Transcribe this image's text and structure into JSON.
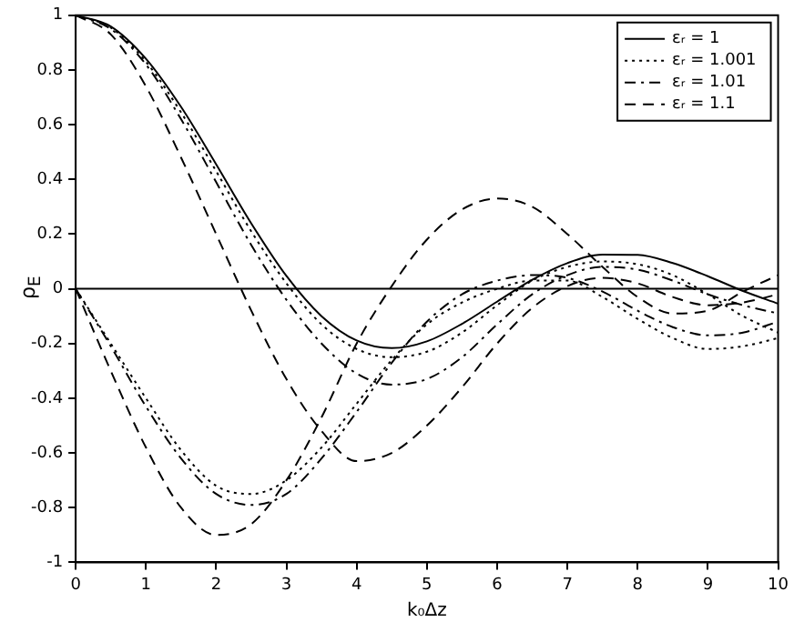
{
  "chart_data": {
    "type": "line",
    "xlabel": "k₀Δz",
    "ylabel": "ρ$_{E}$",
    "x": [
      0,
      0.5,
      1,
      1.5,
      2,
      2.5,
      3,
      3.5,
      4,
      4.5,
      5,
      5.5,
      6,
      6.5,
      7,
      7.5,
      8,
      8.5,
      9,
      9.5,
      10
    ],
    "xlim": [
      0,
      10
    ],
    "xticks": [
      0,
      1,
      2,
      3,
      4,
      5,
      6,
      7,
      8,
      9,
      10
    ],
    "ylim": [
      -1,
      1
    ],
    "yticks": [
      -1,
      -0.8,
      -0.6,
      -0.4,
      -0.2,
      0,
      0.2,
      0.4,
      0.6,
      0.8,
      1
    ],
    "grid": false,
    "legend": "top right",
    "marker": "none",
    "series": [
      {
        "name": "εᵣ = 1",
        "color": "#000000",
        "line_style": "solid",
        "values": [
          1,
          0.959,
          0.841,
          0.665,
          0.455,
          0.239,
          0.047,
          -0.1,
          -0.189,
          -0.217,
          -0.192,
          -0.128,
          -0.047,
          0.033,
          0.094,
          0.125,
          0.124,
          0.094,
          0.046,
          -0.008,
          -0.054
        ]
      },
      {
        "color": "#000000",
        "line_style": "solid",
        "values": [
          0,
          0,
          0,
          0,
          0,
          0,
          0,
          0,
          0,
          0,
          0,
          0,
          0,
          0,
          0,
          0,
          0,
          0,
          0,
          0,
          0
        ]
      },
      {
        "name": "εᵣ = 1.001",
        "color": "#000000",
        "line_style": "dotted",
        "values": [
          1,
          0.955,
          0.83,
          0.645,
          0.43,
          0.21,
          0.02,
          -0.13,
          -0.22,
          -0.25,
          -0.23,
          -0.16,
          -0.06,
          0.03,
          0.08,
          0.1,
          0.09,
          0.05,
          -0.02,
          -0.1,
          -0.16
        ]
      },
      {
        "color": "#000000",
        "line_style": "dotted",
        "values": [
          0,
          -0.2,
          -0.4,
          -0.59,
          -0.72,
          -0.75,
          -0.7,
          -0.58,
          -0.42,
          -0.26,
          -0.13,
          -0.05,
          0,
          0.03,
          0.03,
          -0.03,
          -0.11,
          -0.18,
          -0.22,
          -0.21,
          -0.18
        ]
      },
      {
        "name": "εᵣ = 1.01",
        "color": "#000000",
        "line_style": "dashdot",
        "values": [
          1,
          0.95,
          0.82,
          0.62,
          0.39,
          0.16,
          -0.04,
          -0.2,
          -0.31,
          -0.35,
          -0.33,
          -0.25,
          -0.13,
          -0.02,
          0.05,
          0.08,
          0.07,
          0.03,
          -0.02,
          -0.06,
          -0.09
        ]
      },
      {
        "color": "#000000",
        "line_style": "dashdot",
        "values": [
          0,
          -0.21,
          -0.43,
          -0.62,
          -0.75,
          -0.79,
          -0.75,
          -0.62,
          -0.45,
          -0.27,
          -0.12,
          -0.02,
          0.03,
          0.05,
          0.04,
          -0.01,
          -0.08,
          -0.14,
          -0.17,
          -0.16,
          -0.12
        ]
      },
      {
        "name": "εᵣ = 1.1",
        "color": "#000000",
        "line_style": "dashed",
        "values": [
          1,
          0.93,
          0.74,
          0.48,
          0.2,
          -0.08,
          -0.33,
          -0.52,
          -0.63,
          -0.6,
          -0.5,
          -0.36,
          -0.2,
          -0.07,
          0.01,
          0.04,
          0.02,
          -0.03,
          -0.06,
          -0.05,
          -0.02
        ]
      },
      {
        "color": "#000000",
        "line_style": "dashed",
        "values": [
          0,
          -0.3,
          -0.58,
          -0.8,
          -0.9,
          -0.86,
          -0.7,
          -0.47,
          -0.2,
          0.01,
          0.18,
          0.29,
          0.33,
          0.3,
          0.2,
          0.08,
          -0.03,
          -0.09,
          -0.08,
          -0.01,
          0.05
        ]
      }
    ]
  }
}
